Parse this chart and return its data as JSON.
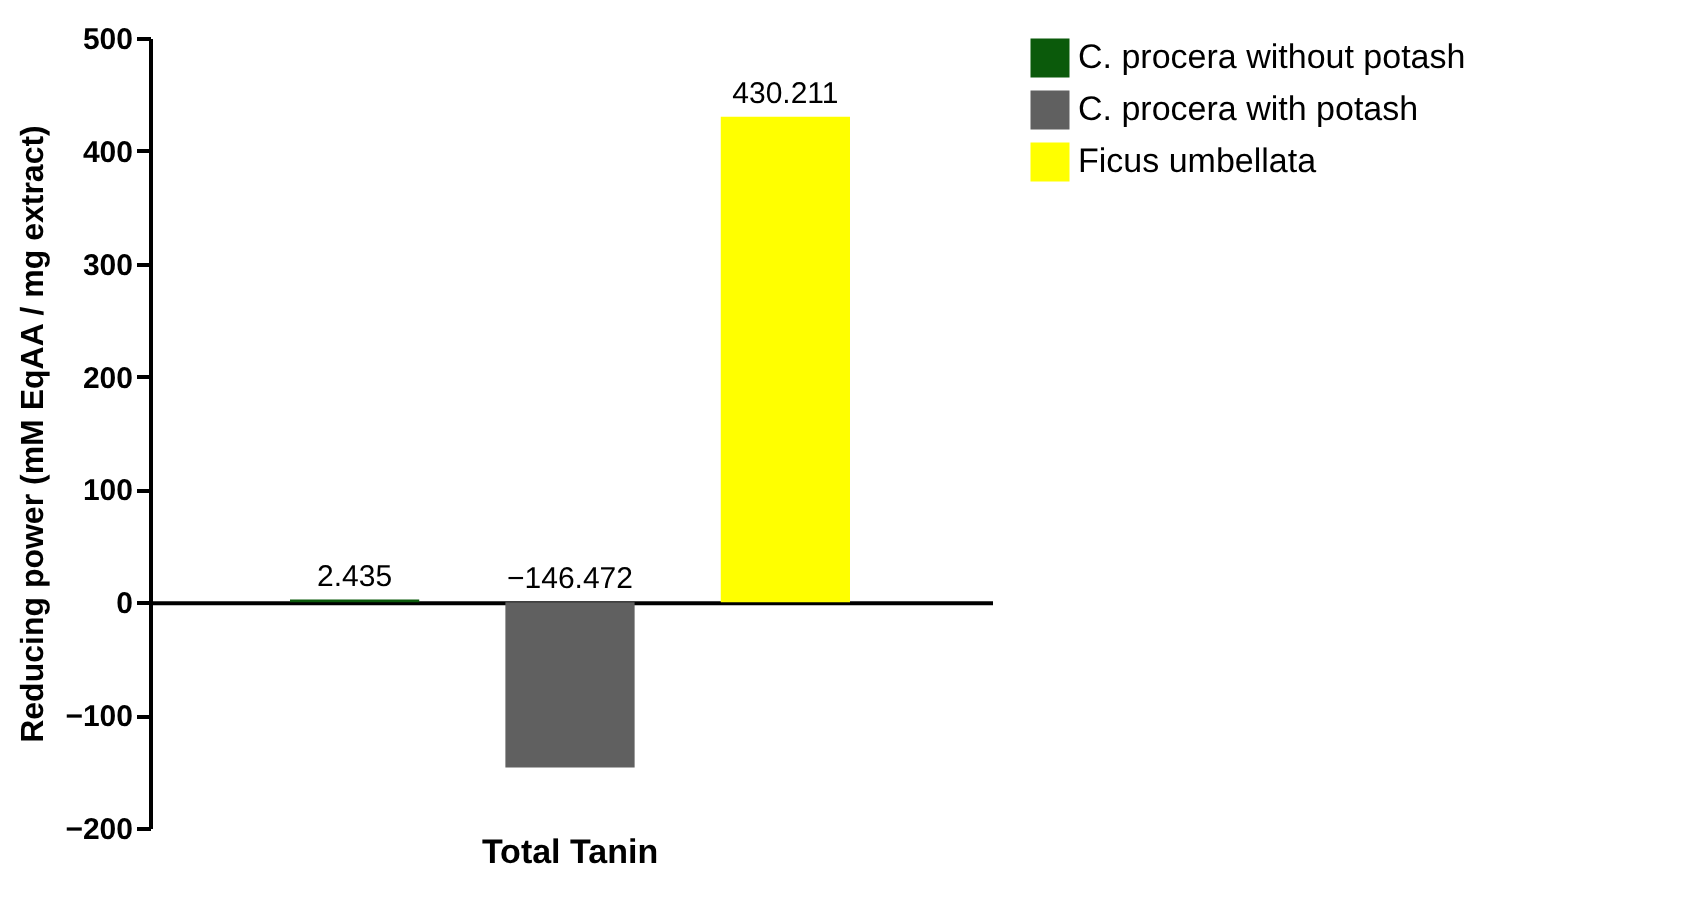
{
  "chart_data": {
    "type": "bar",
    "ylabel": "Reducing power (mM EqAA / mg extract)",
    "categories": [
      "Total Tanin"
    ],
    "series": [
      {
        "name": "C. procera without potash",
        "color": "#0b5a0b",
        "values": [
          2.435
        ]
      },
      {
        "name": "C. procera with potash",
        "color": "#606060",
        "values": [
          -146.472
        ]
      },
      {
        "name": "Ficus umbellata",
        "color": "#ffff00",
        "values": [
          430.211
        ]
      }
    ],
    "ylim": [
      -200,
      500
    ],
    "yticks": [
      -200,
      -100,
      0,
      100,
      200,
      300,
      400,
      500
    ],
    "data_labels": true,
    "legend": "top right"
  }
}
